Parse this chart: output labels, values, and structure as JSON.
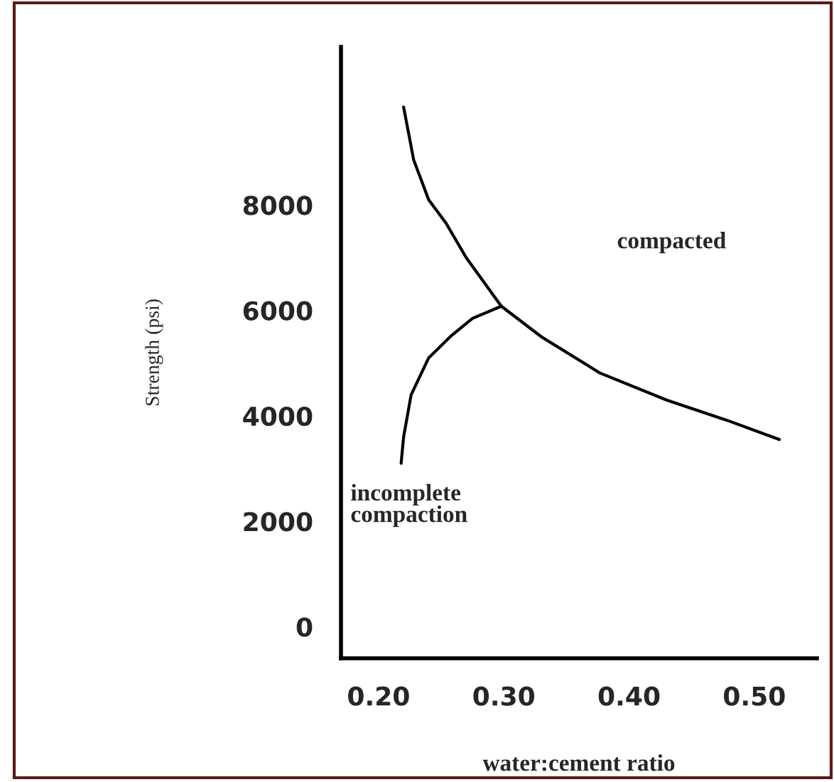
{
  "chart_data": {
    "type": "line",
    "xlabel": "water:cement ratio",
    "ylabel": "Strength (psi)",
    "xlim": [
      0.17,
      0.55
    ],
    "xticks": [
      {
        "value": 0.2,
        "label": "0.20"
      },
      {
        "value": 0.3,
        "label": "0.30"
      },
      {
        "value": 0.4,
        "label": "0.40"
      },
      {
        "value": 0.5,
        "label": "0.50"
      }
    ],
    "ylim": [
      -600,
      11000
    ],
    "yticks": [
      0,
      2000,
      4000,
      6000,
      8000
    ],
    "series": [
      {
        "color": "#000000",
        "x": [
          0.22,
          0.228,
          0.24,
          0.254,
          0.27,
          0.298,
          0.33,
          0.377,
          0.43,
          0.48,
          0.52
        ],
        "values": [
          9860,
          8860,
          8100,
          7650,
          7000,
          6080,
          5500,
          4810,
          4300,
          3900,
          3550
        ]
      },
      {
        "color": "#000000",
        "x": [
          0.218,
          0.22,
          0.226,
          0.24,
          0.258,
          0.275,
          0.298
        ],
        "values": [
          3100,
          3600,
          4400,
          5100,
          5520,
          5850,
          6080
        ]
      }
    ],
    "annotations": [
      "compacted",
      "incomplete\ncompaction"
    ],
    "grid": false,
    "legend": false,
    "marker": "none",
    "line_style": "solid"
  }
}
